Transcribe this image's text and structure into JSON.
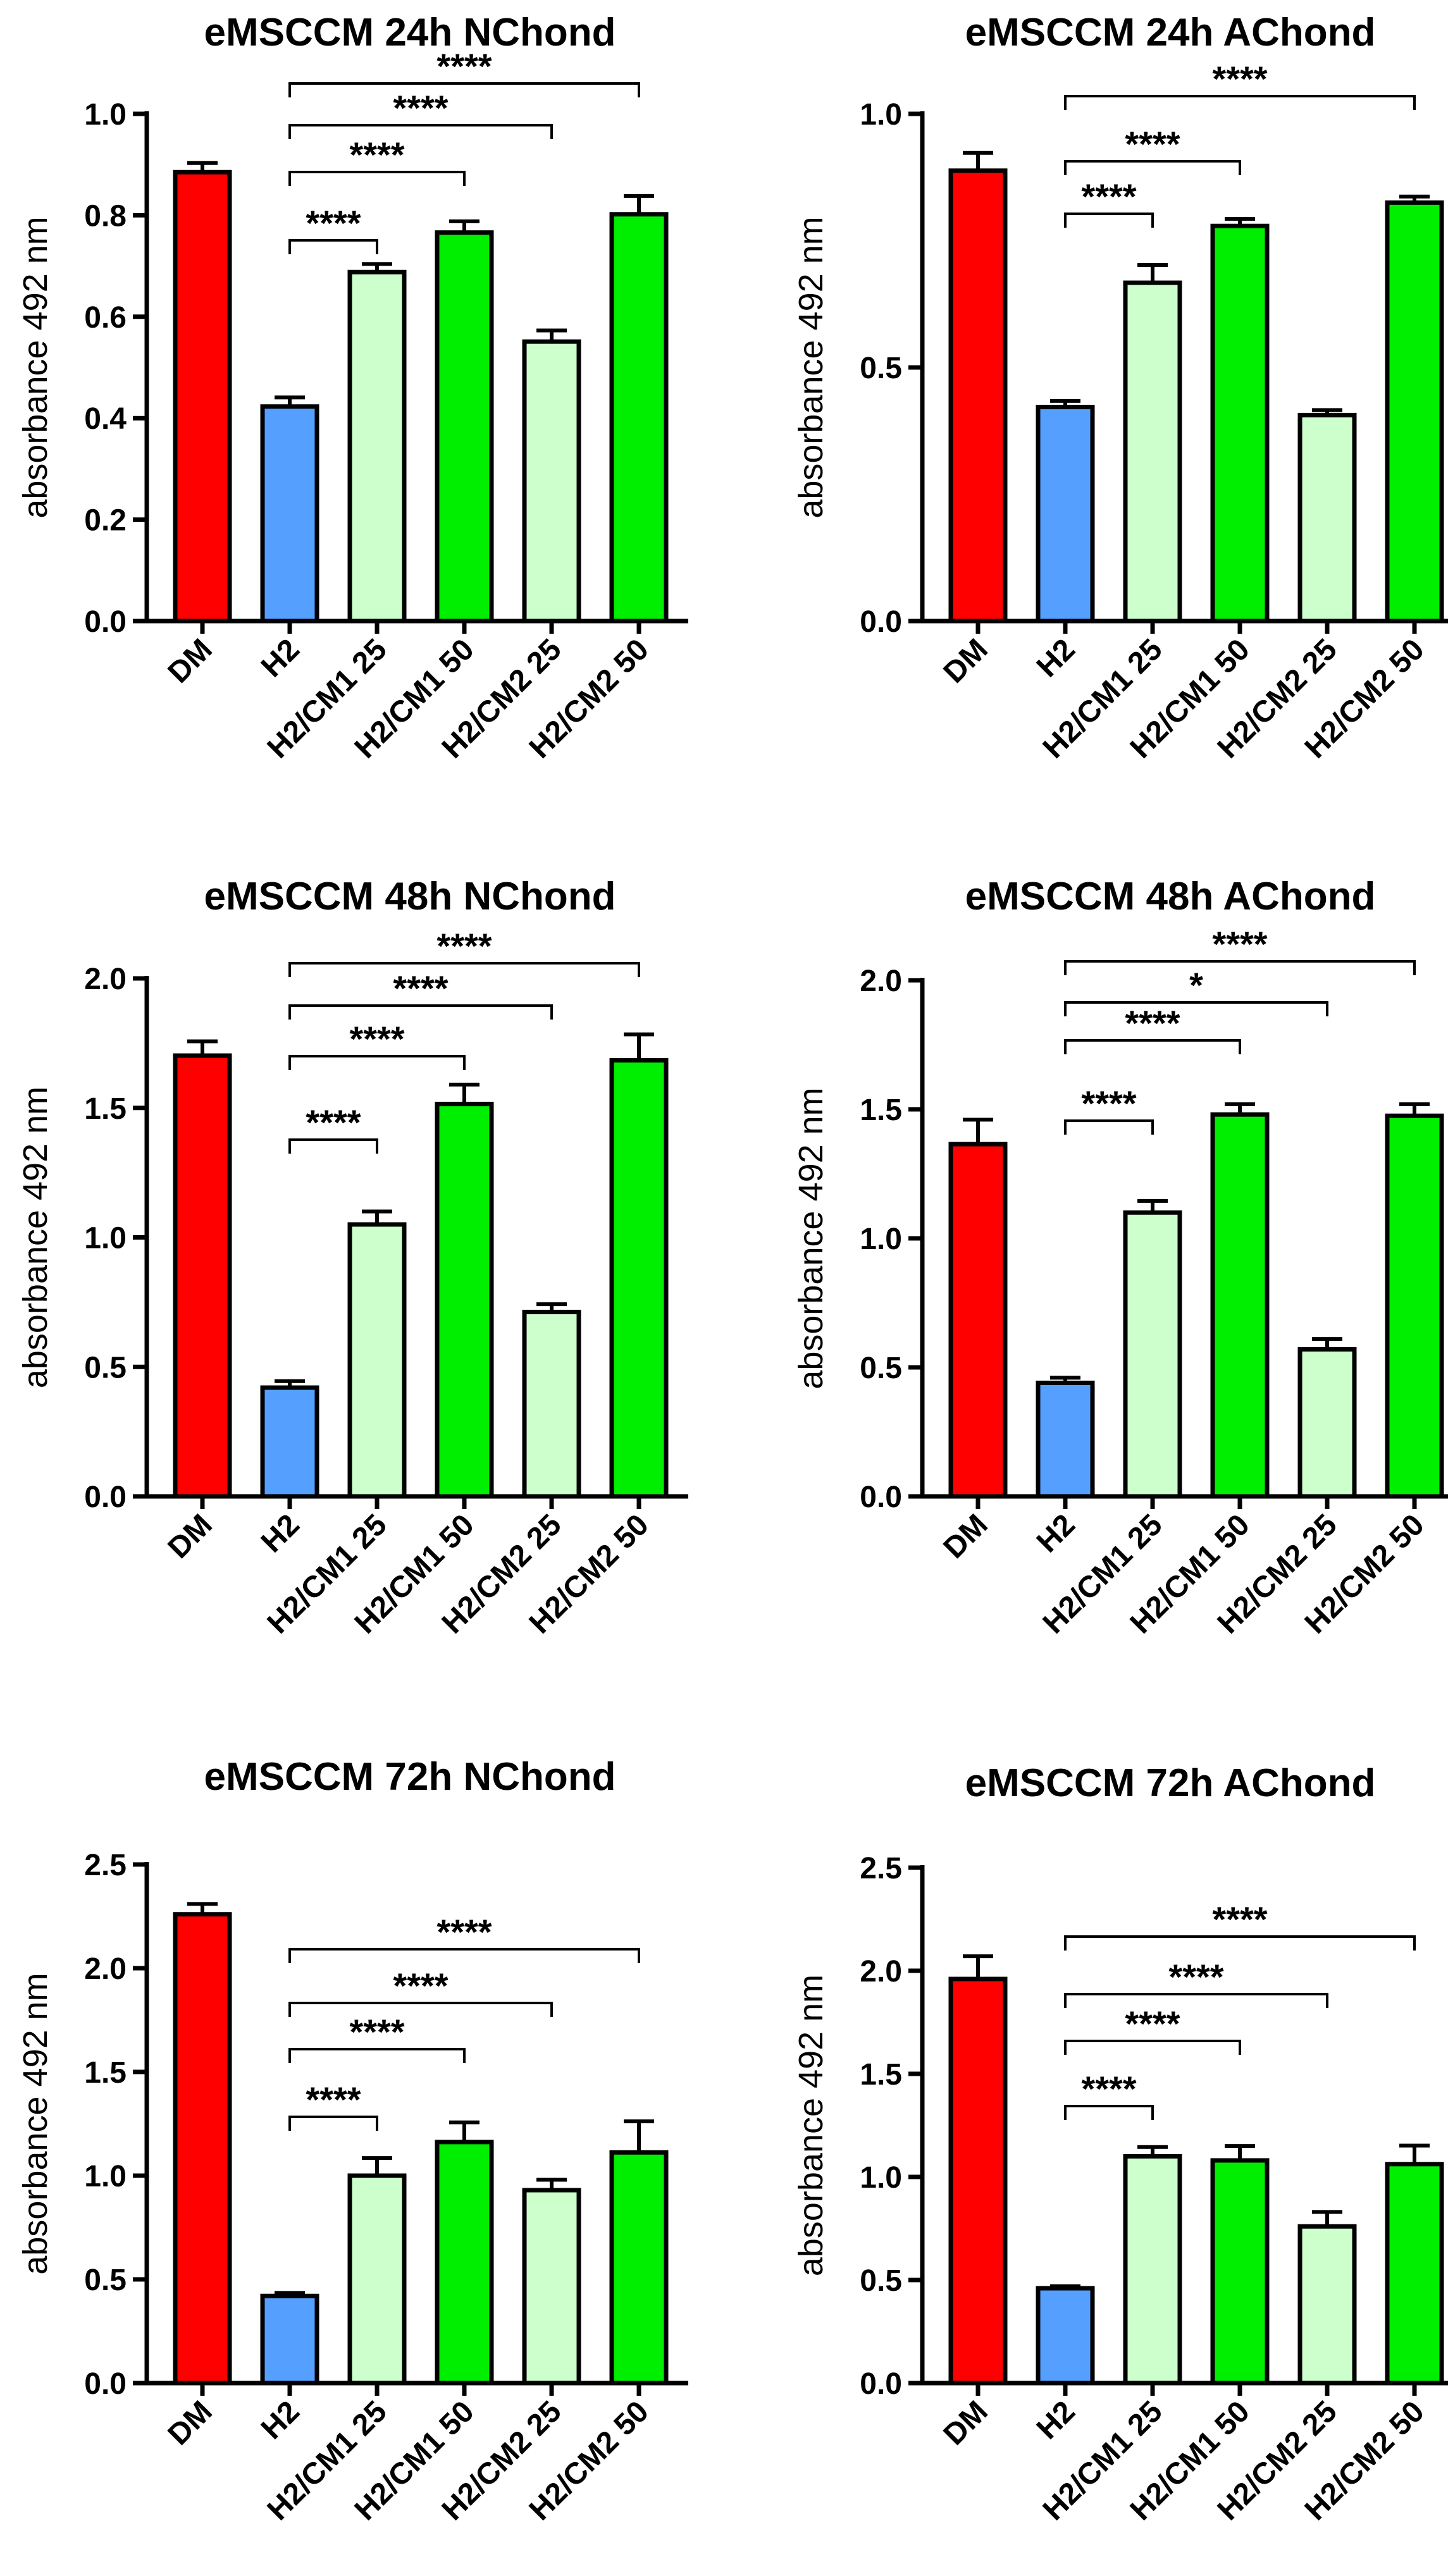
{
  "figure": {
    "colors": {
      "DM": "#ff0000",
      "H2": "#55a0ff",
      "CM25": "#ccffcc",
      "CM50": "#00ee00"
    }
  },
  "chart_data": [
    {
      "type": "bar",
      "title": "eMSCCM  24h NChond",
      "ylabel": "absorbance 492 nm",
      "xlabel": "",
      "ylim": [
        0,
        1.0
      ],
      "yticks": [
        "0.0",
        "0.2",
        "0.4",
        "0.6",
        "0.8",
        "1.0"
      ],
      "categories": [
        "DM",
        "H2",
        "H2/CM1 25",
        "H2/CM1 50",
        "H2/CM2 25",
        "H2/CM2 50"
      ],
      "values": [
        0.885,
        0.423,
        0.688,
        0.766,
        0.551,
        0.802
      ],
      "errors": [
        0.018,
        0.018,
        0.016,
        0.022,
        0.022,
        0.036
      ],
      "significance": [
        {
          "from": 1,
          "to": 2,
          "label": "****"
        },
        {
          "from": 1,
          "to": 3,
          "label": "****"
        },
        {
          "from": 1,
          "to": 4,
          "label": "****"
        },
        {
          "from": 1,
          "to": 5,
          "label": "****"
        }
      ]
    },
    {
      "type": "bar",
      "title": "eMSCCM  24h AChond",
      "ylabel": "absorbance 492 nm",
      "xlabel": "",
      "ylim": [
        0,
        1.0
      ],
      "yticks": [
        "0.0",
        "0.5",
        "1.0"
      ],
      "categories": [
        "DM",
        "H2",
        "H2/CM1 25",
        "H2/CM1 50",
        "H2/CM2 25",
        "H2/CM2 50"
      ],
      "values": [
        0.888,
        0.422,
        0.667,
        0.779,
        0.406,
        0.825
      ],
      "errors": [
        0.035,
        0.012,
        0.035,
        0.014,
        0.01,
        0.012
      ],
      "significance": [
        {
          "from": 1,
          "to": 2,
          "label": "****"
        },
        {
          "from": 1,
          "to": 3,
          "label": "****"
        },
        {
          "from": 1,
          "to": 5,
          "label": "****"
        }
      ]
    },
    {
      "type": "bar",
      "title": "eMSCCM  48h NChond",
      "ylabel": "absorbance 492 nm",
      "xlabel": "",
      "ylim": [
        0,
        2.0
      ],
      "yticks": [
        "0.0",
        "0.5",
        "1.0",
        "1.5",
        "2.0"
      ],
      "categories": [
        "DM",
        "H2",
        "H2/CM1 25",
        "H2/CM1 50",
        "H2/CM2 25",
        "H2/CM2 50"
      ],
      "values": [
        1.702,
        0.42,
        1.05,
        1.515,
        0.712,
        1.684
      ],
      "errors": [
        0.055,
        0.025,
        0.05,
        0.075,
        0.03,
        0.1
      ],
      "significance": [
        {
          "from": 1,
          "to": 2,
          "label": "****"
        },
        {
          "from": 1,
          "to": 3,
          "label": "****"
        },
        {
          "from": 1,
          "to": 4,
          "label": "****"
        },
        {
          "from": 1,
          "to": 5,
          "label": "****"
        }
      ]
    },
    {
      "type": "bar",
      "title": "eMSCCM  48h AChond",
      "ylabel": "absorbance 492 nm",
      "xlabel": "",
      "ylim": [
        0,
        2.0
      ],
      "yticks": [
        "0.0",
        "0.5",
        "1.0",
        "1.5",
        "2.0"
      ],
      "categories": [
        "DM",
        "H2",
        "H2/CM1 25",
        "H2/CM1 50",
        "H2/CM2 25",
        "H2/CM2 50"
      ],
      "values": [
        1.365,
        0.44,
        1.1,
        1.48,
        0.57,
        1.475
      ],
      "errors": [
        0.095,
        0.02,
        0.045,
        0.04,
        0.04,
        0.045
      ],
      "significance": [
        {
          "from": 1,
          "to": 2,
          "label": "****"
        },
        {
          "from": 1,
          "to": 3,
          "label": "****"
        },
        {
          "from": 1,
          "to": 4,
          "label": "*"
        },
        {
          "from": 1,
          "to": 5,
          "label": "****"
        }
      ]
    },
    {
      "type": "bar",
      "title": "eMSCCM  72h NChond",
      "ylabel": "absorbance 492 nm",
      "xlabel": "",
      "ylim": [
        0,
        2.5
      ],
      "yticks": [
        "0.0",
        "0.5",
        "1.0",
        "1.5",
        "2.0",
        "2.5"
      ],
      "categories": [
        "DM",
        "H2",
        "H2/CM1 25",
        "H2/CM1 50",
        "H2/CM2 25",
        "H2/CM2 50"
      ],
      "values": [
        2.26,
        0.42,
        1.0,
        1.162,
        0.93,
        1.112
      ],
      "errors": [
        0.05,
        0.015,
        0.085,
        0.095,
        0.05,
        0.15
      ],
      "significance": [
        {
          "from": 1,
          "to": 2,
          "label": "****"
        },
        {
          "from": 1,
          "to": 3,
          "label": "****"
        },
        {
          "from": 1,
          "to": 4,
          "label": "****"
        },
        {
          "from": 1,
          "to": 5,
          "label": "****"
        }
      ]
    },
    {
      "type": "bar",
      "title": "eMSCCM  72h AChond",
      "ylabel": "absorbance 492 nm",
      "xlabel": "",
      "ylim": [
        0,
        2.5
      ],
      "yticks": [
        "0.0",
        "0.5",
        "1.0",
        "1.5",
        "2.0",
        "2.5"
      ],
      "categories": [
        "DM",
        "H2",
        "H2/CM1 25",
        "H2/CM1 50",
        "H2/CM2 25",
        "H2/CM2 50"
      ],
      "values": [
        1.96,
        0.46,
        1.1,
        1.08,
        0.76,
        1.062
      ],
      "errors": [
        0.11,
        0.01,
        0.045,
        0.07,
        0.07,
        0.09
      ],
      "significance": [
        {
          "from": 1,
          "to": 2,
          "label": "****"
        },
        {
          "from": 1,
          "to": 3,
          "label": "****"
        },
        {
          "from": 1,
          "to": 4,
          "label": "****"
        },
        {
          "from": 1,
          "to": 5,
          "label": "****"
        }
      ]
    }
  ]
}
